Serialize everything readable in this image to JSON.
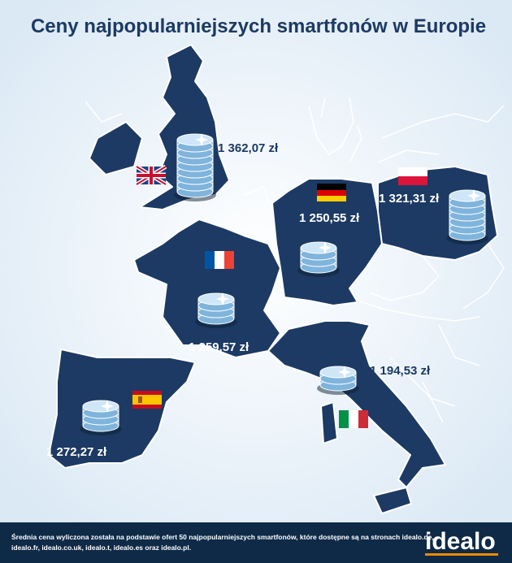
{
  "header": {
    "title": "Ceny najpopularniejszych smartfonów w Europie"
  },
  "countries": [
    {
      "price": "1 362,07 zł"
    },
    {
      "price": "1 250,55 zł"
    },
    {
      "price": "1 321,31 zł"
    },
    {
      "price": "1 259,57 zł"
    },
    {
      "price": "1 194,53 zł"
    },
    {
      "price": "1 272,27 zł"
    }
  ],
  "footer": {
    "lines": [
      "Średnia cena wyliczona została na podstawie ofert 50 najpopularniejszych smartfonów, które dostępne są na stronach idealo.de,",
      "idealo.fr, idealo.co.uk, idealo.t, idealo.es oraz idealo.pl."
    ],
    "logo": "idealo"
  }
}
